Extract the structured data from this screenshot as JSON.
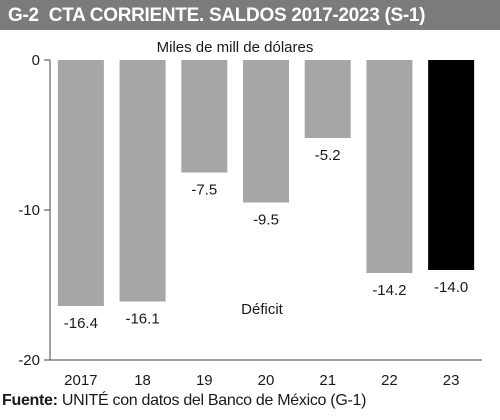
{
  "header": {
    "code": "G-2",
    "title": "CTA CORRIENTE. SALDOS 2017-2023 (S-1)"
  },
  "source": {
    "label": "Fuente:",
    "text": "UNITÉ con datos del Banco de México (G-1)"
  },
  "chart_data": {
    "type": "bar",
    "title": "CTA CORRIENTE. SALDOS 2017-2023 (S-1)",
    "ylabel": "Miles de mill de dólares",
    "annotation": "Déficit",
    "categories": [
      "2017",
      "18",
      "19",
      "20",
      "21",
      "22",
      "23"
    ],
    "values": [
      -16.4,
      -16.1,
      -7.5,
      -9.5,
      -5.2,
      -14.2,
      -14.0
    ],
    "value_labels": [
      "-16.4",
      "-16.1",
      "-7.5",
      "-9.5",
      "-5.2",
      "-14.2",
      "-14.0"
    ],
    "ylim": [
      -20,
      0
    ],
    "yticks": [
      0,
      -10,
      -20
    ],
    "ytick_labels": [
      "0",
      "-10",
      "-20"
    ],
    "colors": [
      "#a6a6a6",
      "#a6a6a6",
      "#a6a6a6",
      "#a6a6a6",
      "#a6a6a6",
      "#a6a6a6",
      "#000000"
    ],
    "grid": false
  }
}
